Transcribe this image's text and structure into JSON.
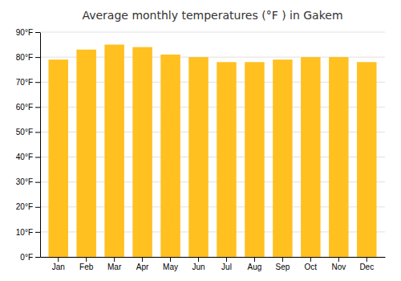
{
  "chart_data": {
    "type": "bar",
    "title": "Average monthly temperatures (°F ) in Gakem",
    "categories": [
      "Jan",
      "Feb",
      "Mar",
      "Apr",
      "May",
      "Jun",
      "Jul",
      "Aug",
      "Sep",
      "Oct",
      "Nov",
      "Dec"
    ],
    "values": [
      79,
      83,
      85,
      84,
      81,
      80,
      78,
      78,
      79,
      80,
      80,
      78
    ],
    "color": "#FFC020",
    "ylim": [
      0,
      90
    ],
    "yticks": [
      {
        "value": 0,
        "label": "0°F"
      },
      {
        "value": 10,
        "label": "10°F"
      },
      {
        "value": 20,
        "label": "20°F"
      },
      {
        "value": 30,
        "label": "30°F"
      },
      {
        "value": 40,
        "label": "40°F"
      },
      {
        "value": 50,
        "label": "50°F"
      },
      {
        "value": 60,
        "label": "60°F"
      },
      {
        "value": 70,
        "label": "70°F"
      },
      {
        "value": 80,
        "label": "80°F"
      },
      {
        "value": 90,
        "label": "90°F"
      }
    ],
    "grid": true
  }
}
